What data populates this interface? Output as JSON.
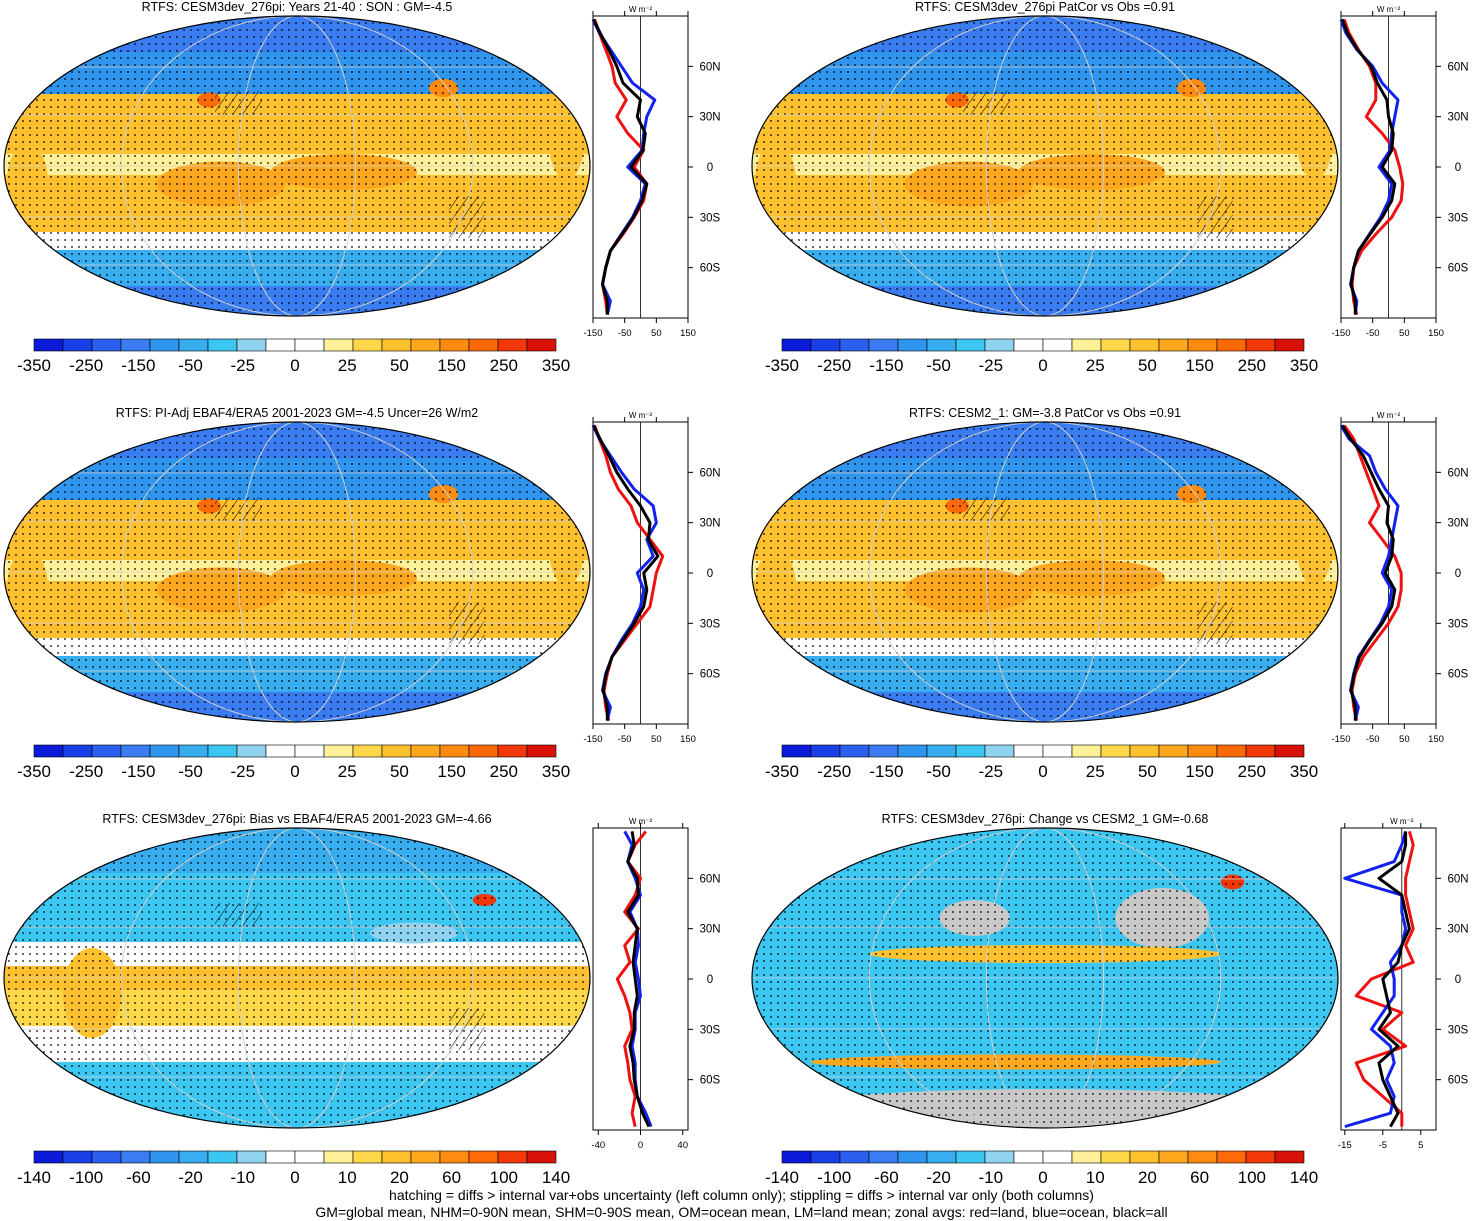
{
  "footer": {
    "line1": "hatching = diffs > internal var+obs uncertainty (left column only); stippling = diffs > internal var only (both columns)",
    "line2": "GM=global mean, NHM=0-90N mean, SHM=0-90S mean, OM=ocean mean, LM=land mean; zonal avgs: red=land, blue=ocean, black=all"
  },
  "colors": {
    "land": "#ee1111",
    "ocean": "#1122ee",
    "all": "#000000",
    "missing": "#c8c8c8"
  },
  "palette": [
    "#0b1ad8",
    "#1a3fe6",
    "#2a5ff0",
    "#3a7df2",
    "#2f95ee",
    "#38aef0",
    "#3cc6f2",
    "#8fd3f0",
    "#ffffff",
    "#ffffff",
    "#fff19a",
    "#ffd84a",
    "#ffc12e",
    "#ffa81e",
    "#ff8c10",
    "#ff6a08",
    "#f23808",
    "#d81208"
  ],
  "colorbars": {
    "abs": [
      "-350",
      "-250",
      "-150",
      "-50",
      "-25",
      "0",
      "25",
      "50",
      "150",
      "250",
      "350"
    ],
    "diff": [
      "-140",
      "-100",
      "-60",
      "-20",
      "-10",
      "0",
      "10",
      "20",
      "60",
      "100",
      "140"
    ]
  },
  "zonal_axes": {
    "lat_labels": [
      "60N",
      "30N",
      "0",
      "30S",
      "60S"
    ],
    "unit": "W m⁻²",
    "abs_ticks": [
      "-150",
      "-50",
      "50",
      "150"
    ],
    "bias_ticks": [
      "-40",
      "0",
      "40"
    ],
    "change_ticks": [
      "-15",
      "-5",
      "5"
    ]
  },
  "chart_data": [
    {
      "type": "heatmap",
      "title": "RTFS: CESM3dev_276pi: Years 21-40 : SON : GM=-4.5",
      "variant": "abs",
      "colorbar": "abs",
      "zonal": {
        "xlim": [
          -150,
          150
        ],
        "lat": [
          88,
          80,
          70,
          60,
          50,
          40,
          30,
          20,
          10,
          0,
          -10,
          -20,
          -30,
          -40,
          -50,
          -60,
          -70,
          -80,
          -88
        ],
        "land": [
          -145,
          -130,
          -110,
          -90,
          -80,
          -45,
          -75,
          -40,
          10,
          -20,
          20,
          10,
          -20,
          -55,
          -95,
          -110,
          -120,
          -110,
          -105
        ],
        "ocean": [
          -150,
          -130,
          -95,
          -60,
          -25,
          45,
          20,
          10,
          5,
          -40,
          15,
          0,
          -25,
          -60,
          -95,
          -110,
          -120,
          -95,
          -105
        ],
        "all": [
          -148,
          -128,
          -100,
          -75,
          -55,
          0,
          -10,
          15,
          8,
          -30,
          20,
          5,
          -22,
          -58,
          -95,
          -110,
          -120,
          -105,
          -105
        ]
      }
    },
    {
      "type": "heatmap",
      "title": "RTFS: CESM3dev_276pi PatCor vs Obs =0.91",
      "variant": "abs",
      "colorbar": "abs",
      "zonal": {
        "xlim": [
          -150,
          150
        ],
        "lat": [
          88,
          80,
          70,
          60,
          50,
          40,
          30,
          20,
          10,
          0,
          -10,
          -20,
          -30,
          -40,
          -50,
          -60,
          -70,
          -80,
          -88
        ],
        "land": [
          -140,
          -125,
          -95,
          -60,
          -40,
          -40,
          -70,
          -20,
          20,
          35,
          45,
          40,
          10,
          -40,
          -85,
          -110,
          -115,
          -110,
          -100
        ],
        "ocean": [
          -150,
          -135,
          -100,
          -50,
          -20,
          30,
          20,
          10,
          5,
          -30,
          10,
          0,
          -25,
          -60,
          -95,
          -110,
          -120,
          -100,
          -105
        ],
        "all": [
          -146,
          -130,
          -98,
          -55,
          -35,
          -5,
          0,
          15,
          10,
          -20,
          20,
          10,
          -20,
          -58,
          -95,
          -110,
          -118,
          -105,
          -105
        ]
      }
    },
    {
      "type": "heatmap",
      "title": "RTFS: PI-Adj EBAF4/ERA5 2001-2023 GM=-4.5 Uncer=26 W/m2",
      "variant": "abs",
      "colorbar": "abs",
      "zonal": {
        "xlim": [
          -150,
          150
        ],
        "lat": [
          88,
          80,
          70,
          60,
          50,
          40,
          30,
          20,
          10,
          0,
          -10,
          -20,
          -30,
          -40,
          -50,
          -60,
          -70,
          -80,
          -88
        ],
        "land": [
          -145,
          -130,
          -110,
          -95,
          -70,
          -30,
          -10,
          30,
          70,
          50,
          40,
          30,
          -10,
          -50,
          -90,
          -105,
          -115,
          -110,
          -100
        ],
        "ocean": [
          -150,
          -130,
          -95,
          -60,
          -20,
          40,
          50,
          20,
          40,
          -10,
          10,
          0,
          -25,
          -60,
          -90,
          -110,
          -120,
          -95,
          -105
        ],
        "all": [
          -148,
          -128,
          -100,
          -75,
          -40,
          0,
          30,
          25,
          55,
          10,
          20,
          10,
          -20,
          -55,
          -90,
          -108,
          -118,
          -105,
          -105
        ]
      }
    },
    {
      "type": "heatmap",
      "title": "RTFS: CESM2_1: GM=-3.8 PatCor vs Obs =0.91",
      "variant": "abs",
      "colorbar": "abs",
      "zonal": {
        "xlim": [
          -150,
          150
        ],
        "lat": [
          88,
          80,
          70,
          60,
          50,
          40,
          30,
          20,
          10,
          0,
          -10,
          -20,
          -30,
          -40,
          -50,
          -60,
          -70,
          -80,
          -88
        ],
        "land": [
          -140,
          -110,
          -90,
          -70,
          -50,
          -30,
          -60,
          -20,
          20,
          40,
          40,
          30,
          0,
          -40,
          -80,
          -105,
          -115,
          -110,
          -100
        ],
        "ocean": [
          -150,
          -125,
          -60,
          -40,
          -10,
          30,
          20,
          10,
          0,
          -20,
          10,
          0,
          -25,
          -60,
          -95,
          -110,
          -120,
          -95,
          -105
        ],
        "all": [
          -146,
          -120,
          -80,
          -55,
          -30,
          0,
          -5,
          15,
          10,
          -10,
          20,
          10,
          -20,
          -58,
          -92,
          -108,
          -118,
          -105,
          -105
        ]
      }
    },
    {
      "type": "heatmap",
      "title": "RTFS: CESM3dev_276pi: Bias vs EBAF4/ERA5 2001-2023  GM=-4.66",
      "variant": "diff",
      "colorbar": "diff",
      "zonal": {
        "xlim": [
          -45,
          45
        ],
        "lat": [
          88,
          80,
          70,
          60,
          50,
          40,
          30,
          20,
          10,
          0,
          -10,
          -20,
          -30,
          -40,
          -50,
          -60,
          -70,
          -80,
          -88
        ],
        "land": [
          5,
          -5,
          -12,
          0,
          -5,
          -15,
          -2,
          -15,
          -10,
          -22,
          -15,
          -10,
          -8,
          -15,
          -12,
          -10,
          -5,
          -8,
          -5
        ],
        "ocean": [
          -15,
          -8,
          -12,
          -5,
          0,
          -10,
          -3,
          -2,
          -5,
          -2,
          0,
          -5,
          -5,
          -8,
          -5,
          -5,
          -3,
          5,
          10
        ],
        "all": [
          -8,
          -6,
          -12,
          -3,
          -2,
          -12,
          -3,
          -5,
          -7,
          -5,
          -3,
          -6,
          -6,
          -10,
          -7,
          -6,
          -3,
          2,
          8
        ]
      }
    },
    {
      "type": "heatmap",
      "title": "RTFS: CESM3dev_276pi: Change vs CESM2_1 GM=-0.68",
      "variant": "change",
      "colorbar": "diff",
      "zonal": {
        "xlim": [
          -16,
          9
        ],
        "lat": [
          88,
          80,
          70,
          60,
          50,
          40,
          30,
          20,
          10,
          0,
          -10,
          -20,
          -30,
          -40,
          -50,
          -60,
          -70,
          -80,
          -88
        ],
        "land": [
          2,
          3,
          2,
          1,
          1,
          2,
          3,
          1,
          3,
          -8,
          -12,
          0,
          -5,
          1,
          -12,
          -10,
          -5,
          0,
          0
        ],
        "ocean": [
          1,
          0,
          -2,
          -15,
          0,
          0,
          1,
          0,
          -3,
          -2,
          -2,
          -5,
          -8,
          -3,
          -2,
          -4,
          -2,
          -3,
          -15
        ],
        "all": [
          1,
          1,
          0,
          -6,
          0,
          1,
          2,
          0,
          -1,
          -5,
          -4,
          -3,
          -6,
          -1,
          -6,
          -5,
          -3,
          -1,
          -3
        ]
      }
    }
  ]
}
